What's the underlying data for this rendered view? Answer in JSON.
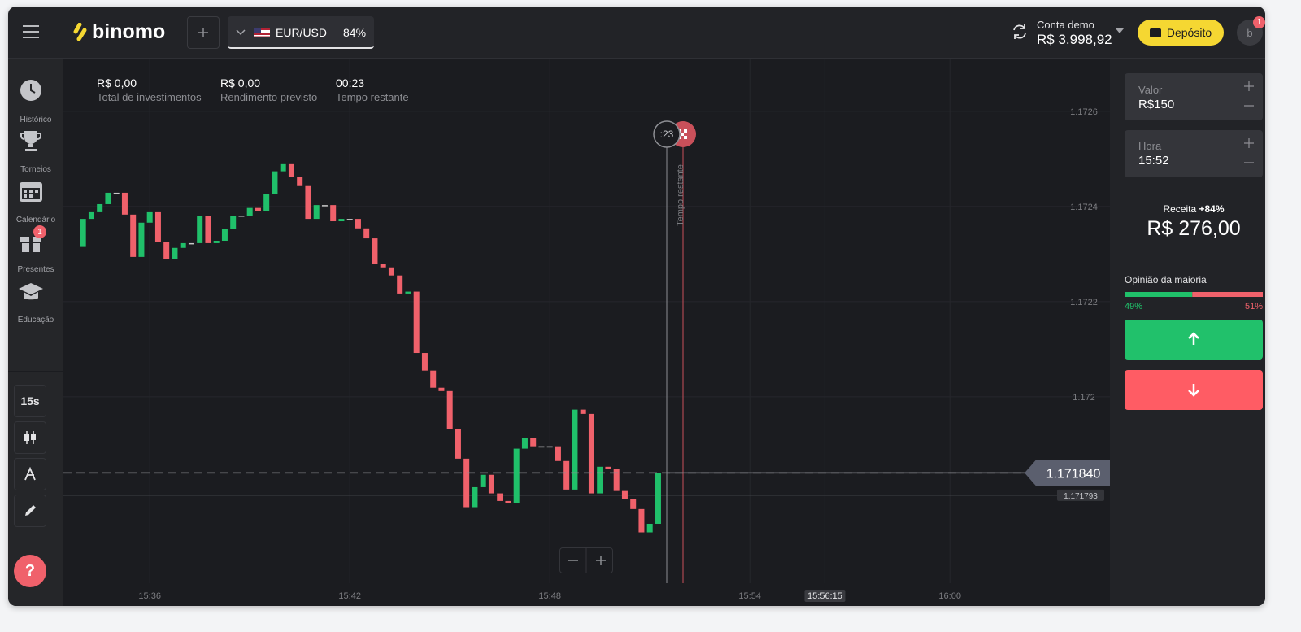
{
  "header": {
    "logo": "binomo",
    "asset": "EUR/USD",
    "payout": "84%",
    "account_label": "Conta demo",
    "balance": "R$ 3.998,92",
    "deposit": "Depósito",
    "avatar": "b",
    "avatar_badge": "1"
  },
  "sidebar": {
    "items": [
      {
        "label": "Histórico"
      },
      {
        "label": "Torneios"
      },
      {
        "label": "Calendário"
      },
      {
        "label": "Presentes",
        "badge": "1"
      },
      {
        "label": "Educação"
      }
    ],
    "timeframe": "15s",
    "help": "?"
  },
  "stats": [
    {
      "value": "R$ 0,00",
      "label": "Total de investimentos"
    },
    {
      "value": "R$ 0,00",
      "label": "Rendimento previsto"
    },
    {
      "value": "00:23",
      "label": "Tempo restante"
    }
  ],
  "timer": {
    "countdown": ":23",
    "vertical_label": "Tempo restante"
  },
  "chart_data": {
    "type": "candlestick",
    "up_color": "#20c06a",
    "down_color": "#f0616b",
    "flat_color": "#c8c8c8",
    "x": [
      934,
      934.25,
      934.5,
      934.75,
      935,
      935.25,
      935.5,
      935.75,
      936,
      936.25,
      936.5,
      936.75,
      937,
      937.25,
      937.5,
      937.75,
      938,
      938.25,
      938.5,
      938.75,
      939,
      939.25,
      939.5,
      939.75,
      940,
      940.25,
      940.5,
      940.75,
      941,
      941.25,
      941.5,
      941.75,
      942,
      942.25,
      942.5,
      942.75,
      943,
      943.25,
      943.5,
      943.75,
      944,
      944.25,
      944.5,
      944.75,
      945,
      945.25,
      945.5,
      945.75,
      946,
      946.25,
      946.5,
      946.75,
      947,
      947.25,
      947.5,
      947.75,
      948,
      948.25,
      948.5,
      948.75,
      949,
      949.25,
      949.5,
      949.75,
      950,
      950.25,
      950.5,
      950.75,
      951,
      951.25
    ],
    "open": [
      1.172315,
      1.172374,
      1.172388,
      1.172405,
      1.172429,
      1.172429,
      1.172383,
      1.172294,
      1.172366,
      1.172388,
      1.172326,
      1.172289,
      1.172313,
      1.172323,
      1.172323,
      1.172381,
      1.172323,
      1.172328,
      1.172352,
      1.172381,
      1.172381,
      1.172397,
      1.172391,
      1.172426,
      1.172474,
      1.172489,
      1.172463,
      1.172443,
      1.172374,
      1.172403,
      1.172403,
      1.172369,
      1.172374,
      1.172374,
      1.172354,
      1.172333,
      1.172279,
      1.172272,
      1.172255,
      1.172217,
      1.172221,
      1.172092,
      1.172055,
      1.172019,
      1.172012,
      1.171933,
      1.17187,
      1.171768,
      1.17181,
      1.171836,
      1.171797,
      1.171781,
      1.171776,
      1.171891,
      1.171913,
      1.171896,
      1.171896,
      1.171896,
      1.171865,
      1.171805,
      1.171973,
      1.171964,
      1.171797,
      1.171853,
      1.171848,
      1.171802,
      1.171785,
      1.171764,
      1.171715,
      1.171733
    ],
    "close": [
      1.172374,
      1.172388,
      1.172405,
      1.172429,
      1.172429,
      1.172383,
      1.172294,
      1.172366,
      1.172388,
      1.172326,
      1.172289,
      1.172313,
      1.172323,
      1.172323,
      1.172381,
      1.172323,
      1.172328,
      1.172352,
      1.172381,
      1.172381,
      1.172397,
      1.172391,
      1.172426,
      1.172474,
      1.172489,
      1.172463,
      1.172443,
      1.172374,
      1.172403,
      1.172403,
      1.172369,
      1.172374,
      1.172374,
      1.172354,
      1.172333,
      1.172279,
      1.172272,
      1.172255,
      1.172217,
      1.172221,
      1.172092,
      1.172055,
      1.172019,
      1.172012,
      1.171933,
      1.17187,
      1.171768,
      1.17181,
      1.171836,
      1.171797,
      1.171781,
      1.171776,
      1.171891,
      1.171913,
      1.171896,
      1.171896,
      1.171896,
      1.171865,
      1.171805,
      1.171973,
      1.171964,
      1.171797,
      1.171853,
      1.171848,
      1.171802,
      1.171785,
      1.171764,
      1.171715,
      1.171733,
      1.17184
    ],
    "xlim": [
      933.41,
      964.8
    ],
    "ylim": [
      1.171562,
      1.172711
    ],
    "xticks": [
      {
        "value": 936,
        "label": "15:36"
      },
      {
        "value": 942,
        "label": "15:42"
      },
      {
        "value": 948,
        "label": "15:48"
      },
      {
        "value": 954,
        "label": "15:54"
      },
      {
        "value": 960,
        "label": "16:00"
      }
    ],
    "yticks": [
      1.1726,
      1.1724,
      1.1722,
      1.172
    ],
    "expiry_tick": {
      "value": 956.25,
      "label": "15:56:15"
    },
    "current_price": {
      "value": 1.17184,
      "label": "1.171840"
    },
    "previous_price": 1.171793
  },
  "trade_panel": {
    "amount_label": "Valor",
    "amount": "R$150",
    "time_label": "Hora",
    "time": "15:52",
    "payout_label": "Receita",
    "payout": "+84%",
    "profit": "R$ 276,00",
    "majority_label": "Opinião da maioria",
    "majority_up": {
      "value": 49,
      "label": "49%"
    },
    "majority_down": {
      "value": 51,
      "label": "51%"
    }
  }
}
